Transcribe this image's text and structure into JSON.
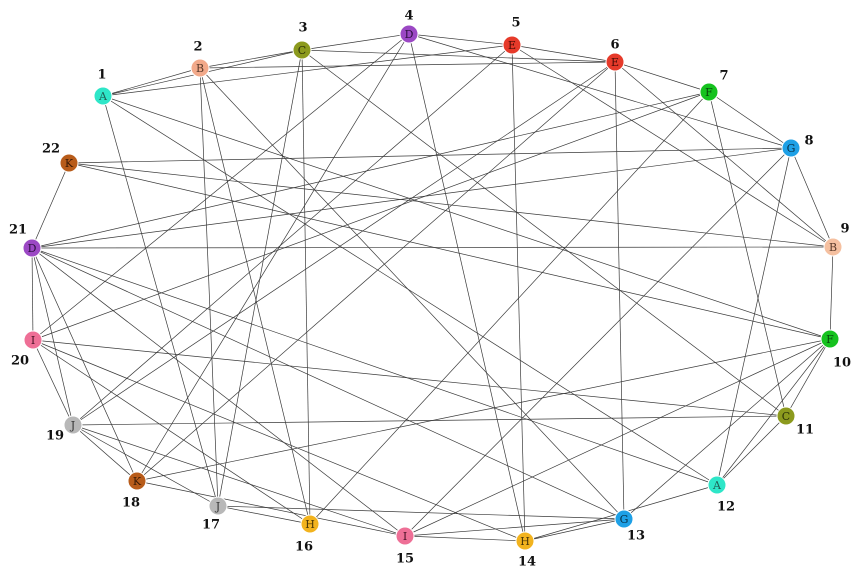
{
  "graph": {
    "nodes": [
      {
        "id": 1,
        "label": "A",
        "number": "1",
        "color": "#2ee6c8",
        "text_color": "#1f5f55"
      },
      {
        "id": 2,
        "label": "B",
        "number": "2",
        "color": "#f2a98a",
        "text_color": "#5a3a2a"
      },
      {
        "id": 3,
        "label": "C",
        "number": "3",
        "color": "#8c9a1e",
        "text_color": "#2d3308"
      },
      {
        "id": 4,
        "label": "D",
        "number": "4",
        "color": "#9b48c4",
        "text_color": "#2e0f40"
      },
      {
        "id": 5,
        "label": "E",
        "number": "5",
        "color": "#e63a2a",
        "text_color": "#4a0a05"
      },
      {
        "id": 6,
        "label": "E",
        "number": "6",
        "color": "#e63a2a",
        "text_color": "#4a0a05"
      },
      {
        "id": 7,
        "label": "F",
        "number": "7",
        "color": "#16c21f",
        "text_color": "#064a0a"
      },
      {
        "id": 8,
        "label": "G",
        "number": "8",
        "color": "#1ea0e6",
        "text_color": "#08324a"
      },
      {
        "id": 9,
        "label": "B",
        "number": "9",
        "color": "#f5c0a0",
        "text_color": "#5a3a2a"
      },
      {
        "id": 10,
        "label": "F",
        "number": "10",
        "color": "#16c21f",
        "text_color": "#064a0a"
      },
      {
        "id": 11,
        "label": "C",
        "number": "11",
        "color": "#8c9a1e",
        "text_color": "#2d3308"
      },
      {
        "id": 12,
        "label": "A",
        "number": "12",
        "color": "#2ee6c8",
        "text_color": "#1f5f55"
      },
      {
        "id": 13,
        "label": "G",
        "number": "13",
        "color": "#1ea0e6",
        "text_color": "#08324a"
      },
      {
        "id": 14,
        "label": "H",
        "number": "14",
        "color": "#f2b31e",
        "text_color": "#4a3606"
      },
      {
        "id": 15,
        "label": "I",
        "number": "15",
        "color": "#ee6f96",
        "text_color": "#4a1226"
      },
      {
        "id": 16,
        "label": "H",
        "number": "16",
        "color": "#f2b31e",
        "text_color": "#4a3606"
      },
      {
        "id": 17,
        "label": "J",
        "number": "17",
        "color": "#b8b8b8",
        "text_color": "#333333"
      },
      {
        "id": 18,
        "label": "K",
        "number": "18",
        "color": "#b85c1a",
        "text_color": "#3a1a05"
      },
      {
        "id": 19,
        "label": "J",
        "number": "19",
        "color": "#b8b8b8",
        "text_color": "#333333"
      },
      {
        "id": 20,
        "label": "I",
        "number": "20",
        "color": "#ee6f96",
        "text_color": "#4a1226"
      },
      {
        "id": 21,
        "label": "D",
        "number": "21",
        "color": "#9b48c4",
        "text_color": "#2e0f40"
      },
      {
        "id": 22,
        "label": "K",
        "number": "22",
        "color": "#b85c1a",
        "text_color": "#3a1a05"
      }
    ],
    "edges": [
      [
        1,
        2
      ],
      [
        1,
        3
      ],
      [
        1,
        5
      ],
      [
        1,
        10
      ],
      [
        1,
        12
      ],
      [
        1,
        17
      ],
      [
        2,
        3
      ],
      [
        2,
        6
      ],
      [
        2,
        13
      ],
      [
        2,
        16
      ],
      [
        2,
        17
      ],
      [
        3,
        4
      ],
      [
        3,
        6
      ],
      [
        3,
        11
      ],
      [
        3,
        16
      ],
      [
        3,
        17
      ],
      [
        4,
        5
      ],
      [
        4,
        8
      ],
      [
        4,
        14
      ],
      [
        4,
        18
      ],
      [
        4,
        20
      ],
      [
        5,
        6
      ],
      [
        5,
        9
      ],
      [
        5,
        14
      ],
      [
        5,
        19
      ],
      [
        6,
        7
      ],
      [
        6,
        9
      ],
      [
        6,
        13
      ],
      [
        6,
        18
      ],
      [
        6,
        19
      ],
      [
        7,
        8
      ],
      [
        7,
        11
      ],
      [
        7,
        16
      ],
      [
        7,
        20
      ],
      [
        7,
        21
      ],
      [
        8,
        9
      ],
      [
        8,
        12
      ],
      [
        8,
        15
      ],
      [
        8,
        21
      ],
      [
        8,
        22
      ],
      [
        9,
        10
      ],
      [
        9,
        21
      ],
      [
        9,
        22
      ],
      [
        10,
        11
      ],
      [
        10,
        12
      ],
      [
        10,
        13
      ],
      [
        10,
        15
      ],
      [
        10,
        18
      ],
      [
        10,
        22
      ],
      [
        11,
        12
      ],
      [
        11,
        19
      ],
      [
        11,
        20
      ],
      [
        12,
        14
      ],
      [
        12,
        21
      ],
      [
        13,
        14
      ],
      [
        13,
        15
      ],
      [
        13,
        17
      ],
      [
        13,
        21
      ],
      [
        14,
        15
      ],
      [
        14,
        20
      ],
      [
        15,
        18
      ],
      [
        15,
        19
      ],
      [
        15,
        21
      ],
      [
        16,
        17
      ],
      [
        16,
        20
      ],
      [
        17,
        19
      ],
      [
        18,
        19
      ],
      [
        18,
        21
      ],
      [
        19,
        20
      ],
      [
        19,
        21
      ],
      [
        20,
        21
      ],
      [
        21,
        22
      ]
    ]
  }
}
